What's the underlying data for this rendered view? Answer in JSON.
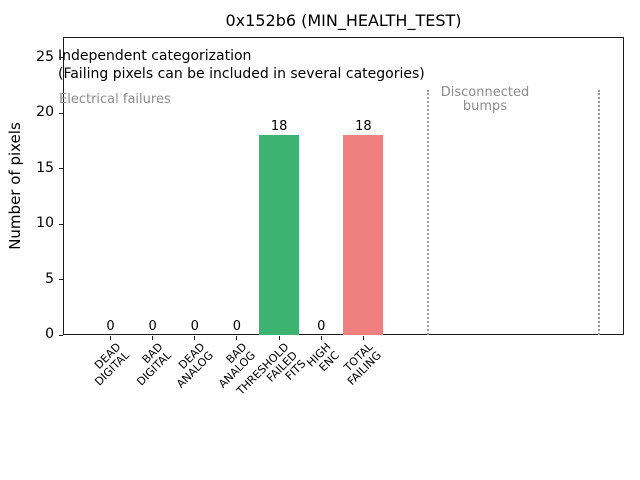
{
  "window": {
    "title": "0x152b6 (MIN_HEALTH_TEST)"
  },
  "chart_data": {
    "type": "bar",
    "title": "0x152b6 (MIN_HEALTH_TEST)",
    "xlabel": "",
    "ylabel": "Number of pixels",
    "ylim": [
      0,
      26.9
    ],
    "yticks": [
      0,
      5,
      10,
      15,
      20,
      25
    ],
    "grid": false,
    "legend": null,
    "categories": [
      "DEAD DIGITAL",
      "BAD DIGITAL",
      "DEAD ANALOG",
      "BAD ANALOG",
      "THRESHOLD FAILED FITS",
      "HIGH ENC",
      "TOTAL FAILING"
    ],
    "category_label_lines": [
      [
        "DEAD",
        "DIGITAL"
      ],
      [
        "BAD",
        "DIGITAL"
      ],
      [
        "DEAD",
        "ANALOG"
      ],
      [
        "BAD",
        "ANALOG"
      ],
      [
        "THRESHOLD",
        "FAILED",
        "FITS"
      ],
      [
        "HIGH",
        "ENC"
      ],
      [
        "TOTAL",
        "FAILING"
      ]
    ],
    "values": [
      0,
      0,
      0,
      0,
      18,
      0,
      18
    ],
    "value_labels": [
      "0",
      "0",
      "0",
      "0",
      "18",
      "0",
      "18"
    ],
    "bar_colors": [
      "#3cb371",
      "#3cb371",
      "#3cb371",
      "#3cb371",
      "#3cb371",
      "#3cb371",
      "#f08080"
    ],
    "annotations": {
      "independent_line1": "Independent categorization",
      "independent_line2": "(Failing pixels can be included in several categories)",
      "region_left_label": "Electrical failures",
      "region_right_label": "Disconnected\nbumps"
    },
    "separator_linestyle": "dotted",
    "colors": {
      "electrical_bar": "#3cb371",
      "total_bar": "#f08080",
      "region_text": "#8c8c8c",
      "axis": "#1a1a1a",
      "background": "#ffffff"
    }
  }
}
